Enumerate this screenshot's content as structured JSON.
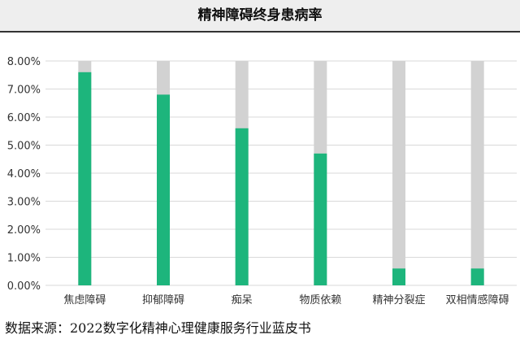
{
  "header": {
    "title": "精神障碍终身患病率"
  },
  "chart_data": {
    "type": "bar",
    "title": "精神障碍终身患病率",
    "xlabel": "",
    "ylabel": "",
    "categories": [
      "焦虑障碍",
      "抑郁障碍",
      "痴呆",
      "物质依赖",
      "精神分裂症",
      "双相情感障碍"
    ],
    "values": [
      7.6,
      6.8,
      5.6,
      4.7,
      0.6,
      0.6
    ],
    "value_unit": "%",
    "ylim": [
      0,
      8
    ],
    "yticks": [
      "0.00%",
      "1.00%",
      "2.00%",
      "3.00%",
      "4.00%",
      "5.00%",
      "6.00%",
      "7.00%",
      "8.00%"
    ],
    "grid": true,
    "legend": "none",
    "colors": {
      "bar": "#1db57c",
      "background_bar": "#d2d2d2",
      "grid": "#d9d9d9",
      "axis_text": "#333333"
    }
  },
  "source": "数据来源：2022数字化精神心理健康服务行业蓝皮书"
}
